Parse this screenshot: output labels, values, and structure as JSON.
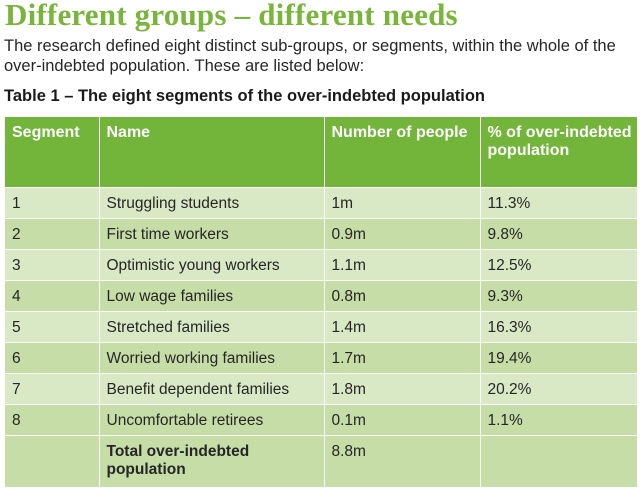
{
  "heading": "Different groups – different needs",
  "intro": "The research defined eight distinct sub-groups, or segments, within the whole of the over-indebted population. These are listed below:",
  "caption": "Table 1 – The eight segments of the over-indebted population",
  "table": {
    "headers": {
      "segment": "Segment",
      "name": "Name",
      "number": "Number of people",
      "percent": "% of over-indebted population"
    },
    "rows": [
      {
        "segment": "1",
        "name": "Struggling students",
        "number": "1m",
        "percent": "11.3%"
      },
      {
        "segment": "2",
        "name": "First time workers",
        "number": "0.9m",
        "percent": "9.8%"
      },
      {
        "segment": "3",
        "name": "Optimistic young workers",
        "number": "1.1m",
        "percent": "12.5%"
      },
      {
        "segment": "4",
        "name": "Low wage families",
        "number": "0.8m",
        "percent": "9.3%"
      },
      {
        "segment": "5",
        "name": "Stretched families",
        "number": "1.4m",
        "percent": "16.3%"
      },
      {
        "segment": "6",
        "name": "Worried working families",
        "number": "1.7m",
        "percent": "19.4%"
      },
      {
        "segment": "7",
        "name": "Benefit dependent families",
        "number": "1.8m",
        "percent": "20.2%"
      },
      {
        "segment": "8",
        "name": "Uncomfortable retirees",
        "number": "0.1m",
        "percent": "1.1%"
      }
    ],
    "total": {
      "label": "Total over-indebted population",
      "number": "8.8m"
    }
  },
  "colors": {
    "heading": "#78b53a",
    "header_bg": "#73b43b",
    "row_light": "#d9e8c5",
    "row_dark": "#c6dda7"
  }
}
